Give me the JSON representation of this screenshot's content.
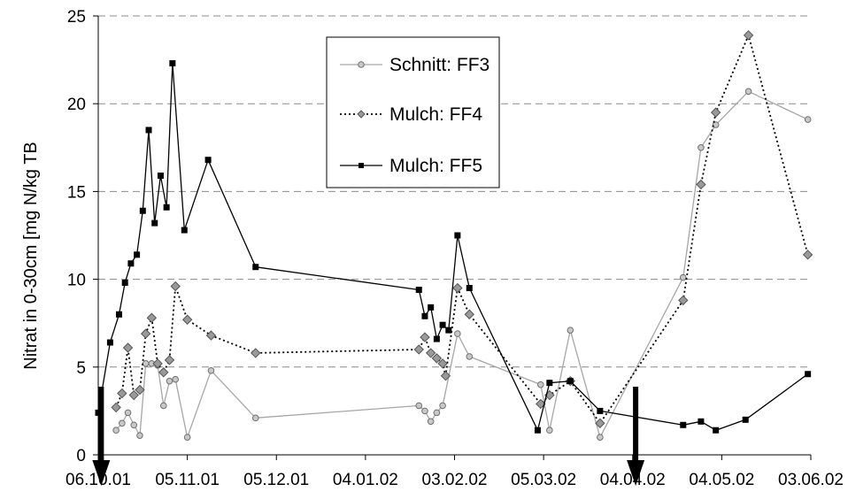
{
  "chart_data": {
    "type": "line",
    "ylabel": "Nitrat in 0-30cm [mg N/kg TB",
    "ylim": [
      0,
      25
    ],
    "y_ticks": [
      "0",
      "5",
      "10",
      "15",
      "20",
      "25"
    ],
    "x_start": "2001-10-06",
    "x_end": "2002-06-03",
    "x_ticks": [
      {
        "date": "2001-10-06",
        "label": "06.10.01"
      },
      {
        "date": "2001-11-05",
        "label": "05.11.01"
      },
      {
        "date": "2001-12-05",
        "label": "05.12.01"
      },
      {
        "date": "2002-01-04",
        "label": "04.01.02"
      },
      {
        "date": "2002-02-03",
        "label": "03.02.02"
      },
      {
        "date": "2002-03-05",
        "label": "05.03.02"
      },
      {
        "date": "2002-04-04",
        "label": "04.04.02"
      },
      {
        "date": "2002-05-04",
        "label": "04.05.02"
      },
      {
        "date": "2002-06-03",
        "label": "03.06.02"
      }
    ],
    "grid": "horizontal dashed",
    "legend_position": "top-center",
    "arrows": [
      "2001-10-07",
      "2002-04-05"
    ],
    "series": [
      {
        "name": "Schnitt: FF3",
        "color": "#a6a6a6",
        "marker": "circle",
        "line": "solid",
        "points": [
          [
            "2001-10-12",
            1.4
          ],
          [
            "2001-10-14",
            1.8
          ],
          [
            "2001-10-16",
            2.4
          ],
          [
            "2001-10-18",
            1.7
          ],
          [
            "2001-10-20",
            1.1
          ],
          [
            "2001-10-22",
            5.2
          ],
          [
            "2001-10-24",
            5.2
          ],
          [
            "2001-10-26",
            5.1
          ],
          [
            "2001-10-28",
            2.8
          ],
          [
            "2001-10-30",
            4.2
          ],
          [
            "2001-11-01",
            4.3
          ],
          [
            "2001-11-05",
            1.0
          ],
          [
            "2001-11-13",
            4.8
          ],
          [
            "2001-11-28",
            2.1
          ],
          [
            "2002-01-22",
            2.8
          ],
          [
            "2002-01-24",
            2.5
          ],
          [
            "2002-01-26",
            1.9
          ],
          [
            "2002-01-28",
            2.4
          ],
          [
            "2002-01-30",
            2.8
          ],
          [
            "2002-02-04",
            6.9
          ],
          [
            "2002-02-08",
            5.6
          ],
          [
            "2002-03-04",
            4.0
          ],
          [
            "2002-03-07",
            1.4
          ],
          [
            "2002-03-14",
            7.1
          ],
          [
            "2002-03-24",
            1.0
          ],
          [
            "2002-04-21",
            10.1
          ],
          [
            "2002-04-27",
            17.5
          ],
          [
            "2002-05-02",
            18.8
          ],
          [
            "2002-05-13",
            20.7
          ],
          [
            "2002-06-02",
            19.1
          ]
        ]
      },
      {
        "name": "Mulch: FF4",
        "color": "#000000",
        "marker": "diamond",
        "line": "dotted",
        "points": [
          [
            "2001-10-12",
            2.7
          ],
          [
            "2001-10-14",
            3.5
          ],
          [
            "2001-10-16",
            6.1
          ],
          [
            "2001-10-18",
            3.4
          ],
          [
            "2001-10-20",
            3.7
          ],
          [
            "2001-10-22",
            6.9
          ],
          [
            "2001-10-24",
            7.8
          ],
          [
            "2001-10-26",
            5.2
          ],
          [
            "2001-10-28",
            4.7
          ],
          [
            "2001-10-30",
            5.4
          ],
          [
            "2001-11-01",
            9.6
          ],
          [
            "2001-11-05",
            7.7
          ],
          [
            "2001-11-13",
            6.8
          ],
          [
            "2001-11-28",
            5.8
          ],
          [
            "2002-01-22",
            6.0
          ],
          [
            "2002-01-24",
            6.7
          ],
          [
            "2002-01-26",
            5.8
          ],
          [
            "2002-01-28",
            5.5
          ],
          [
            "2002-01-30",
            5.2
          ],
          [
            "2002-01-31",
            4.5
          ],
          [
            "2002-02-04",
            9.5
          ],
          [
            "2002-02-08",
            8.0
          ],
          [
            "2002-03-04",
            2.9
          ],
          [
            "2002-03-07",
            3.4
          ],
          [
            "2002-03-14",
            4.2
          ],
          [
            "2002-03-24",
            1.8
          ],
          [
            "2002-04-21",
            8.8
          ],
          [
            "2002-04-27",
            15.4
          ],
          [
            "2002-05-02",
            19.5
          ],
          [
            "2002-05-13",
            23.9
          ],
          [
            "2002-06-02",
            11.4
          ]
        ]
      },
      {
        "name": "Mulch: FF5",
        "color": "#000000",
        "marker": "square",
        "line": "solid",
        "points": [
          [
            "2001-10-06",
            2.4
          ],
          [
            "2001-10-10",
            6.4
          ],
          [
            "2001-10-13",
            8.0
          ],
          [
            "2001-10-15",
            9.8
          ],
          [
            "2001-10-17",
            10.9
          ],
          [
            "2001-10-19",
            11.4
          ],
          [
            "2001-10-21",
            13.9
          ],
          [
            "2001-10-23",
            18.5
          ],
          [
            "2001-10-25",
            13.2
          ],
          [
            "2001-10-27",
            15.9
          ],
          [
            "2001-10-29",
            14.1
          ],
          [
            "2001-10-31",
            22.3
          ],
          [
            "2001-11-04",
            12.8
          ],
          [
            "2001-11-12",
            16.8
          ],
          [
            "2001-11-28",
            10.7
          ],
          [
            "2002-01-22",
            9.4
          ],
          [
            "2002-01-24",
            7.9
          ],
          [
            "2002-01-26",
            8.4
          ],
          [
            "2002-01-28",
            6.6
          ],
          [
            "2002-01-30",
            7.4
          ],
          [
            "2002-02-01",
            7.1
          ],
          [
            "2002-02-04",
            12.5
          ],
          [
            "2002-02-08",
            9.5
          ],
          [
            "2002-03-03",
            1.4
          ],
          [
            "2002-03-07",
            4.1
          ],
          [
            "2002-03-14",
            4.2
          ],
          [
            "2002-03-24",
            2.5
          ],
          [
            "2002-04-21",
            1.7
          ],
          [
            "2002-04-27",
            1.9
          ],
          [
            "2002-05-02",
            1.4
          ],
          [
            "2002-05-12",
            2.0
          ],
          [
            "2002-06-02",
            4.6
          ]
        ]
      }
    ]
  }
}
